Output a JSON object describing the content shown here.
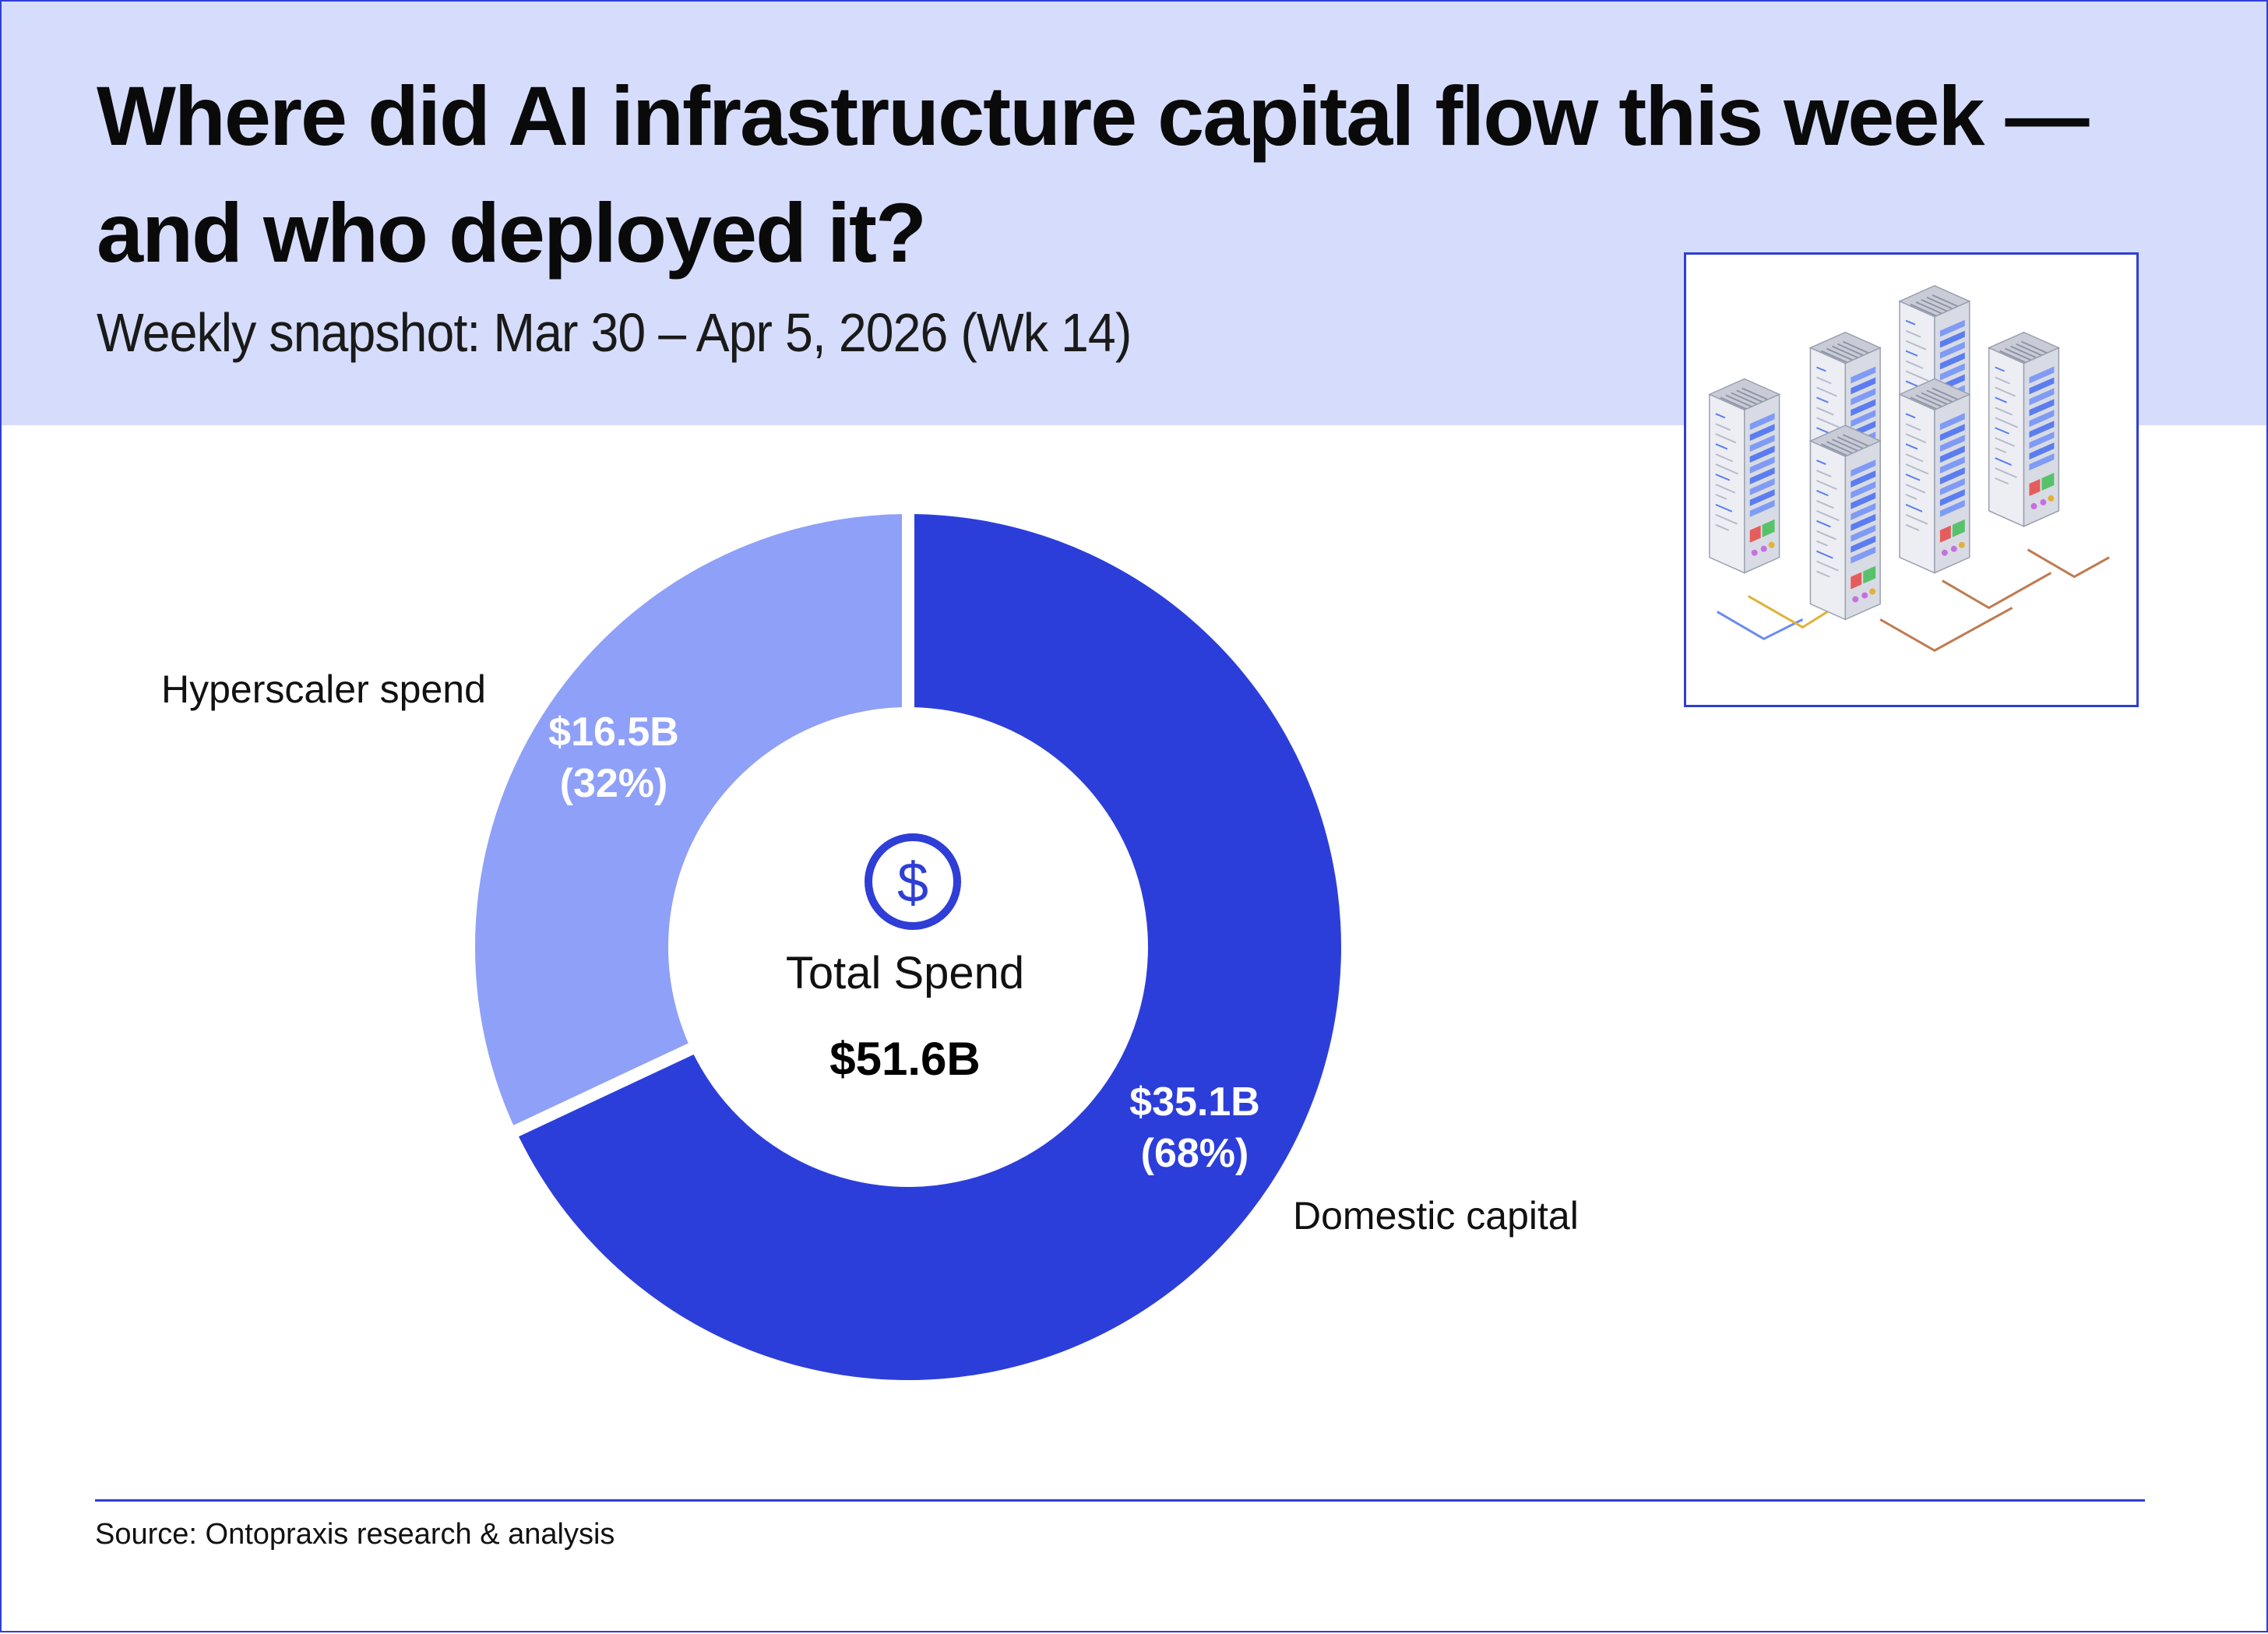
{
  "header": {
    "title": "Where did AI infrastructure capital flow this week — and who deployed it?",
    "subtitle": "Weekly snapshot: Mar 30 – Apr 5, 2026 (Wk 14)"
  },
  "chart_data": {
    "type": "pie",
    "variant": "donut",
    "slices": [
      {
        "label": "Domestic capital",
        "value": 35.1,
        "value_label": "$35.1B",
        "percent_label": "(68%)",
        "color": "#2c3ed9"
      },
      {
        "label": "Hyperscaler spend",
        "value": 16.5,
        "value_label": "$16.5B",
        "percent_label": "(32%)",
        "color": "#8fa0f8"
      }
    ],
    "center": {
      "icon": "dollar-circle-icon",
      "label": "Total Spend",
      "value": "$51.6B"
    }
  },
  "illustration": {
    "icon": "server-racks-illustration"
  },
  "footer": {
    "source": "Source: Ontopraxis research & analysis"
  },
  "colors": {
    "accent": "#2f3ed6",
    "header_band": "#d6ddfc",
    "primary_slice": "#2c3ed9",
    "secondary_slice": "#8fa0f8"
  }
}
